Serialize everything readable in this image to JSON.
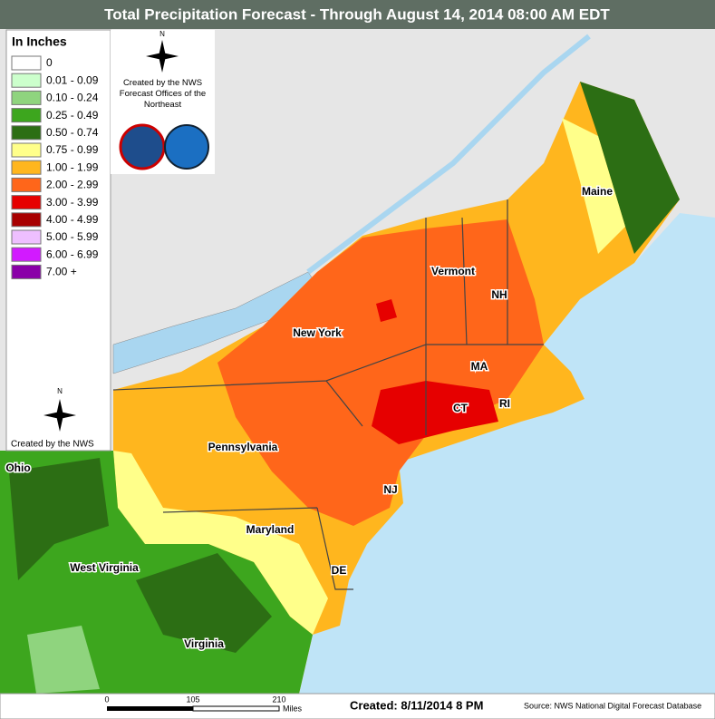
{
  "header": {
    "title": "Total Precipitation Forecast - Through August 14, 2014 08:00 AM EDT"
  },
  "legend": {
    "title": "In Inches",
    "items": [
      {
        "label": "0",
        "color": "#ffffff"
      },
      {
        "label": "0.01 - 0.09",
        "color": "#ccffcc"
      },
      {
        "label": "0.10 - 0.24",
        "color": "#8fd47e"
      },
      {
        "label": "0.25 - 0.49",
        "color": "#3da61e"
      },
      {
        "label": "0.50 - 0.74",
        "color": "#2c6e14"
      },
      {
        "label": "0.75 - 0.99",
        "color": "#ffff8a"
      },
      {
        "label": "1.00 - 1.99",
        "color": "#ffb61e"
      },
      {
        "label": "2.00 - 2.99",
        "color": "#ff661a"
      },
      {
        "label": "3.00 - 3.99",
        "color": "#e60000"
      },
      {
        "label": "4.00 - 4.99",
        "color": "#a80000"
      },
      {
        "label": "5.00 - 5.99",
        "color": "#eebfff"
      },
      {
        "label": "6.00 - 6.99",
        "color": "#d21aff"
      },
      {
        "label": "7.00 +",
        "color": "#8a00a8"
      }
    ]
  },
  "credits": {
    "offices": "Created by the NWS Forecast Offices of the Northeast",
    "nws": "Created by the NWS",
    "compass": "N"
  },
  "states": [
    "New York",
    "Vermont",
    "NH",
    "Maine",
    "MA",
    "CT",
    "RI",
    "NJ",
    "Pennsylvania",
    "Maryland",
    "DE",
    "West Virginia",
    "Virginia",
    "Ohio"
  ],
  "footer": {
    "scale": [
      "0",
      "105",
      "210"
    ],
    "scale_unit": "Miles",
    "created": "Created: 8/11/2014 8 PM",
    "source": "Source: NWS National Digital Forecast Database"
  }
}
